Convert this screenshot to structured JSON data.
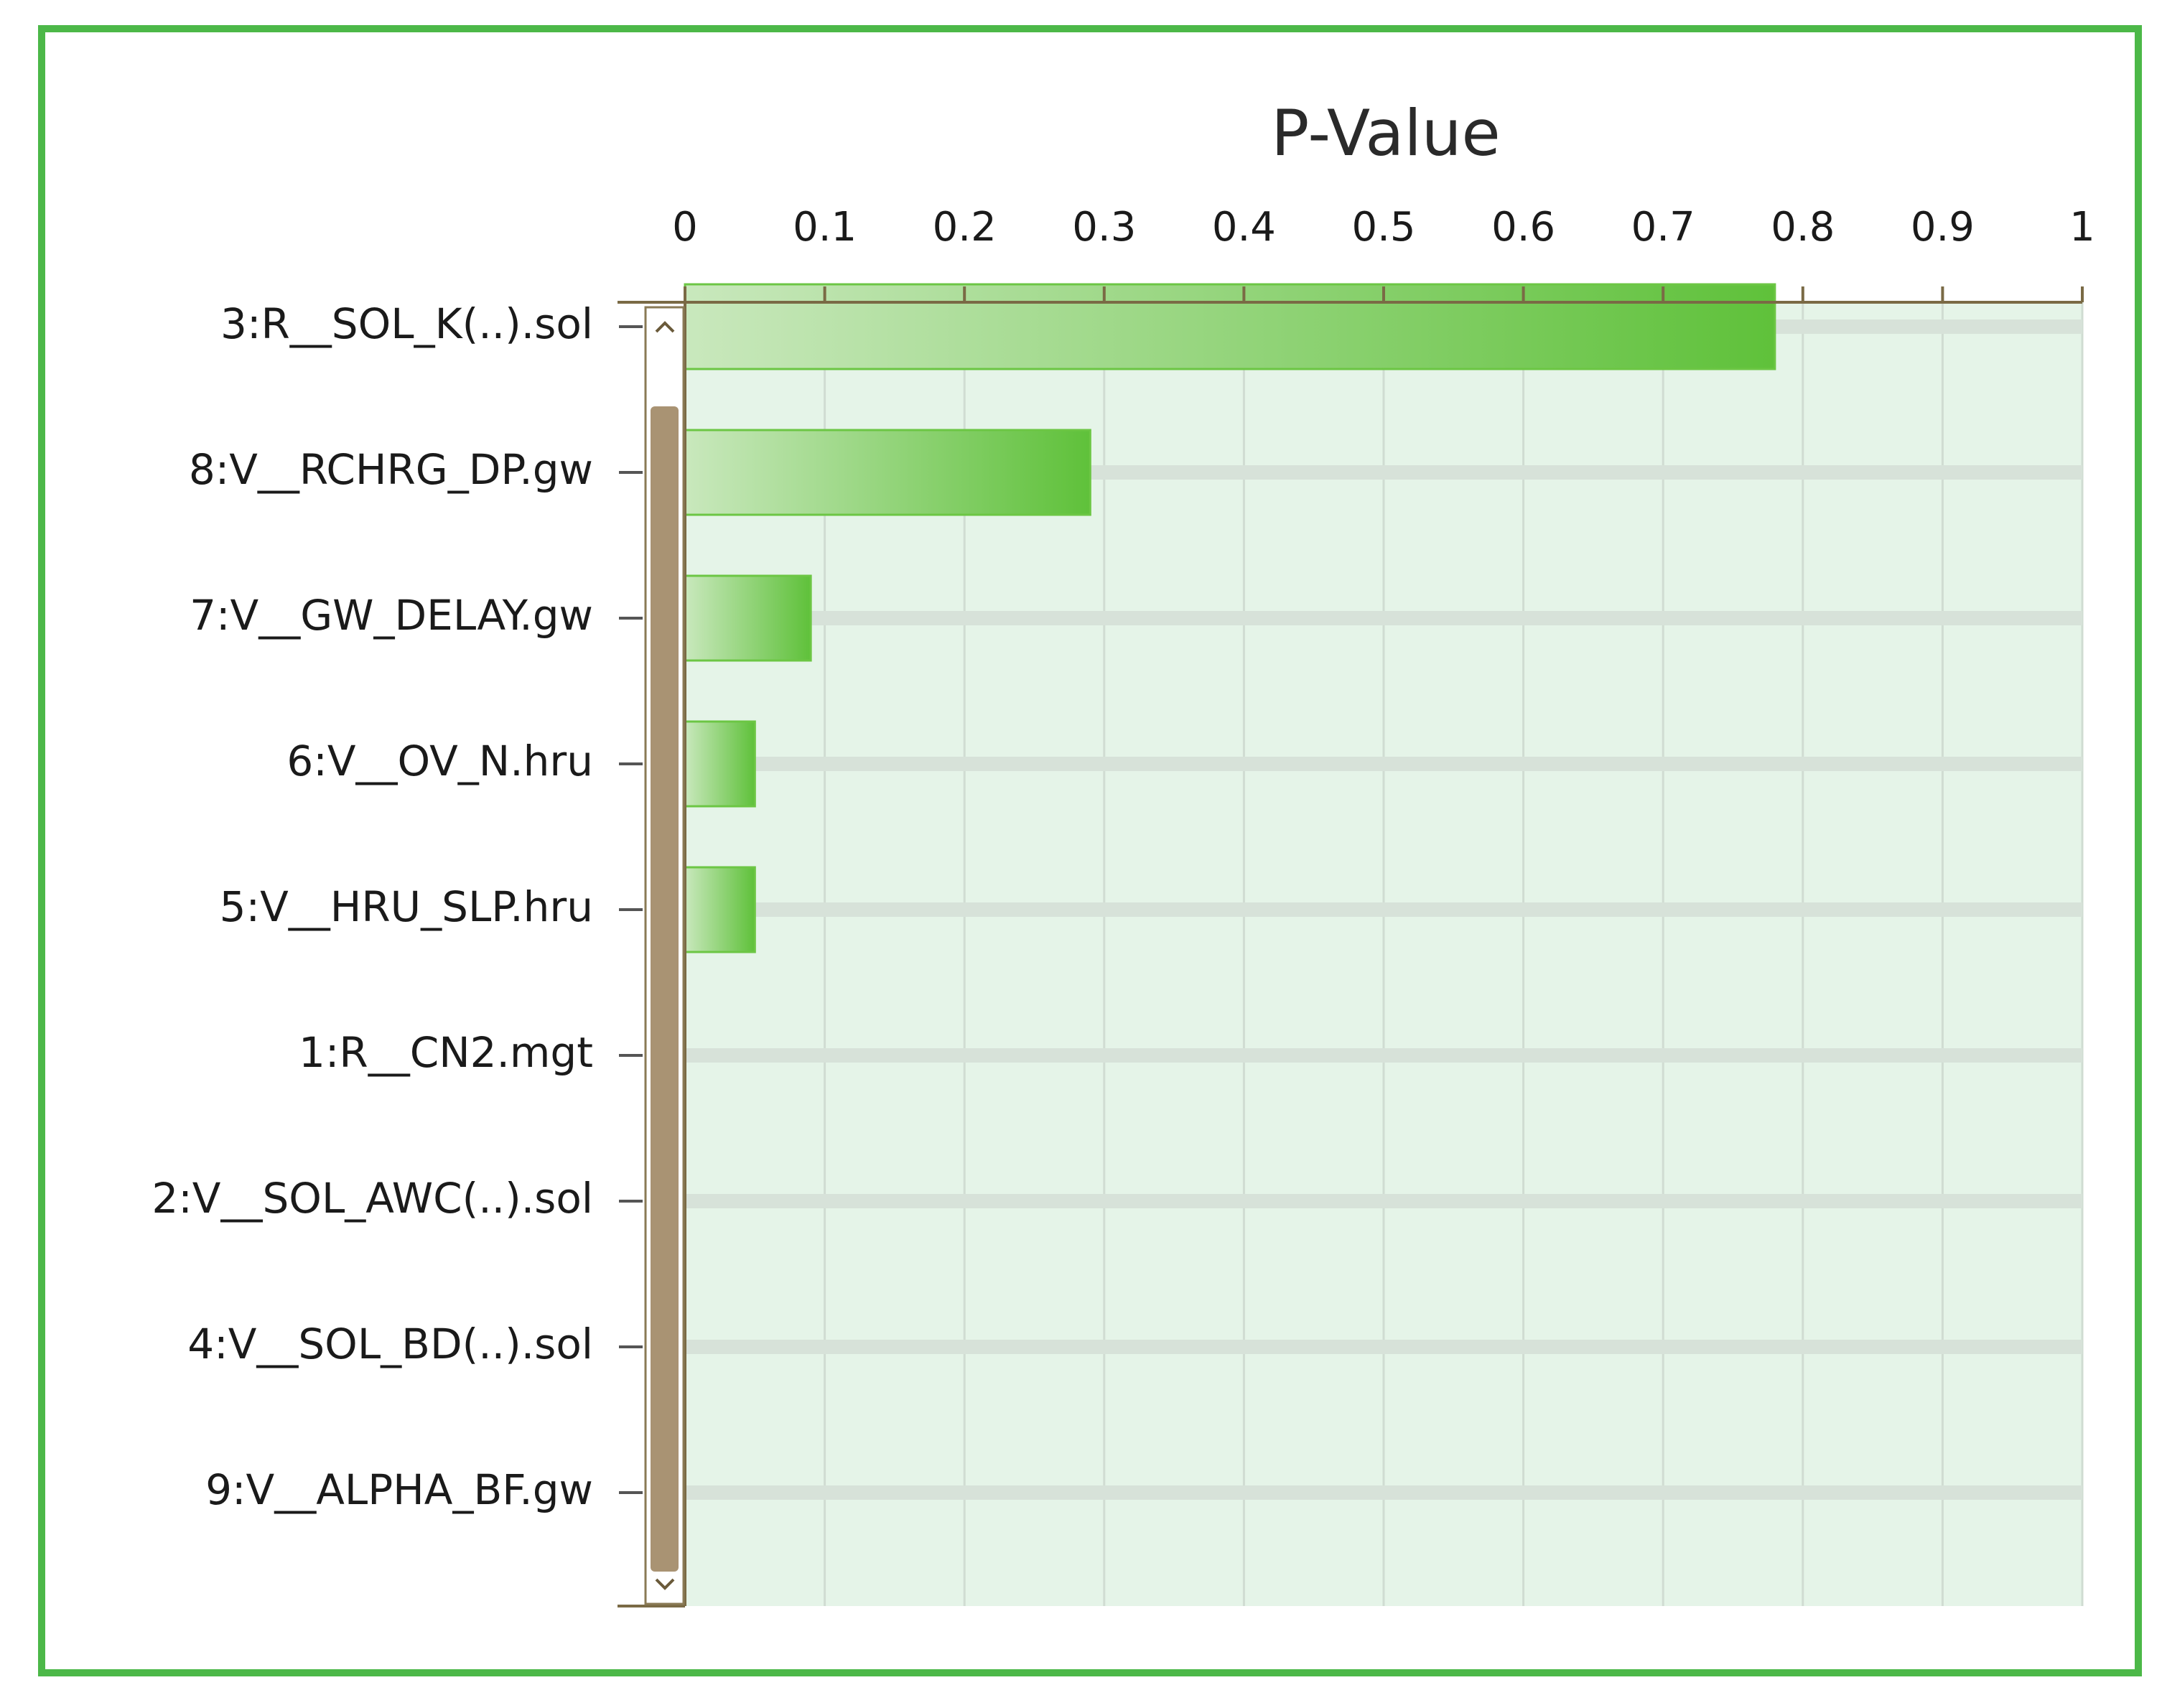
{
  "chart_data": {
    "type": "bar",
    "orientation": "horizontal",
    "title": "P-Value",
    "categories": [
      "3:R__SOL_K(..).sol",
      "8:V__RCHRG_DP.gw",
      "7:V__GW_DELAY.gw",
      "6:V__OV_N.hru",
      "5:V__HRU_SLP.hru",
      "1:R__CN2.mgt",
      "2:V__SOL_AWC(..).sol",
      "4:V__SOL_BD(..).sol",
      "9:V__ALPHA_BF.gw"
    ],
    "values": [
      0.78,
      0.29,
      0.09,
      0.05,
      0.05,
      0,
      0,
      0,
      0
    ],
    "color": "#6cc644",
    "xlim": [
      0,
      1
    ],
    "xticks": [
      0,
      0.1,
      0.2,
      0.3,
      0.4,
      0.5,
      0.6,
      0.7,
      0.8,
      0.9,
      1
    ],
    "grid": true
  }
}
